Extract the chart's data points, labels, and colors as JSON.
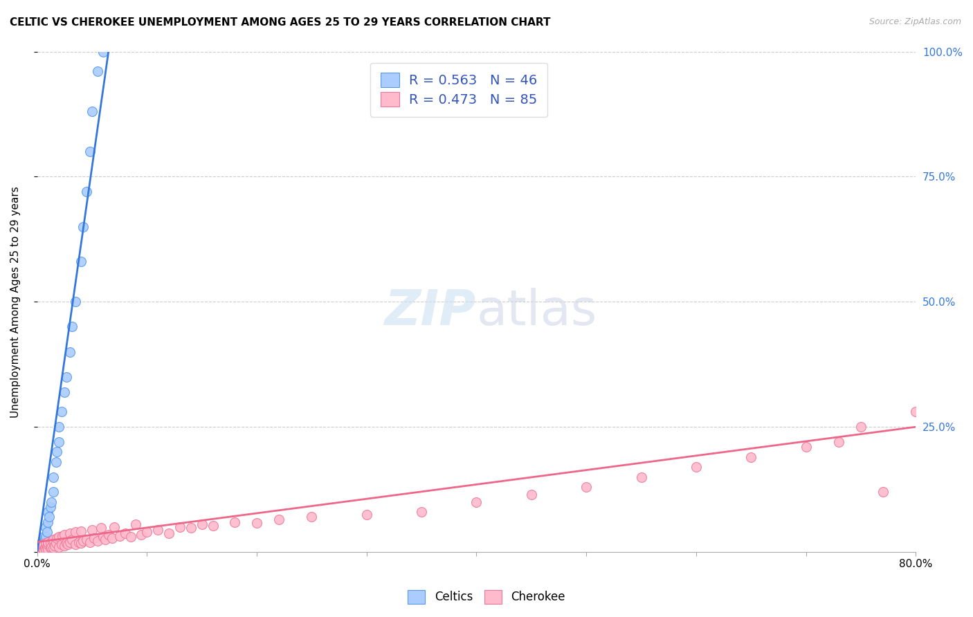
{
  "title": "CELTIC VS CHEROKEE UNEMPLOYMENT AMONG AGES 25 TO 29 YEARS CORRELATION CHART",
  "source": "Source: ZipAtlas.com",
  "ylabel": "Unemployment Among Ages 25 to 29 years",
  "xlim": [
    0.0,
    0.8
  ],
  "ylim": [
    0.0,
    1.0
  ],
  "xticks": [
    0.0,
    0.1,
    0.2,
    0.3,
    0.4,
    0.5,
    0.6,
    0.7,
    0.8
  ],
  "xticklabels": [
    "0.0%",
    "",
    "",
    "",
    "",
    "",
    "",
    "",
    "80.0%"
  ],
  "yticks": [
    0.0,
    0.25,
    0.5,
    0.75,
    1.0
  ],
  "right_yticklabels": [
    "",
    "25.0%",
    "50.0%",
    "75.0%",
    "100.0%"
  ],
  "celtics_color": "#aaccff",
  "cherokee_color": "#ffbbcc",
  "celtics_edge_color": "#5599ee",
  "cherokee_edge_color": "#ee7799",
  "celtics_line_color": "#3377dd",
  "cherokee_line_color": "#ee6688",
  "celtics_R": 0.563,
  "celtics_N": 46,
  "cherokee_R": 0.473,
  "cherokee_N": 85,
  "legend_R_color": "#3355bb",
  "celtics_x": [
    0.001,
    0.001,
    0.001,
    0.001,
    0.001,
    0.002,
    0.002,
    0.002,
    0.003,
    0.003,
    0.003,
    0.004,
    0.004,
    0.005,
    0.005,
    0.005,
    0.006,
    0.006,
    0.007,
    0.008,
    0.008,
    0.009,
    0.01,
    0.01,
    0.011,
    0.012,
    0.013,
    0.015,
    0.015,
    0.017,
    0.018,
    0.02,
    0.02,
    0.022,
    0.025,
    0.027,
    0.03,
    0.032,
    0.035,
    0.04,
    0.042,
    0.045,
    0.048,
    0.05,
    0.055,
    0.06
  ],
  "celtics_y": [
    0.0,
    0.0,
    0.002,
    0.005,
    0.008,
    0.003,
    0.006,
    0.01,
    0.004,
    0.012,
    0.015,
    0.008,
    0.018,
    0.01,
    0.02,
    0.025,
    0.015,
    0.03,
    0.025,
    0.03,
    0.05,
    0.04,
    0.06,
    0.08,
    0.07,
    0.09,
    0.1,
    0.12,
    0.15,
    0.18,
    0.2,
    0.22,
    0.25,
    0.28,
    0.32,
    0.35,
    0.4,
    0.45,
    0.5,
    0.58,
    0.65,
    0.72,
    0.8,
    0.88,
    0.96,
    1.0
  ],
  "cherokee_x": [
    0.001,
    0.001,
    0.002,
    0.002,
    0.003,
    0.003,
    0.004,
    0.004,
    0.005,
    0.005,
    0.006,
    0.006,
    0.007,
    0.008,
    0.008,
    0.009,
    0.01,
    0.01,
    0.01,
    0.012,
    0.012,
    0.013,
    0.014,
    0.015,
    0.015,
    0.016,
    0.017,
    0.018,
    0.02,
    0.02,
    0.022,
    0.023,
    0.025,
    0.025,
    0.027,
    0.028,
    0.03,
    0.03,
    0.032,
    0.035,
    0.035,
    0.038,
    0.04,
    0.04,
    0.042,
    0.045,
    0.048,
    0.05,
    0.052,
    0.055,
    0.058,
    0.06,
    0.062,
    0.065,
    0.068,
    0.07,
    0.075,
    0.08,
    0.085,
    0.09,
    0.095,
    0.1,
    0.11,
    0.12,
    0.13,
    0.14,
    0.15,
    0.16,
    0.18,
    0.2,
    0.22,
    0.25,
    0.3,
    0.35,
    0.4,
    0.45,
    0.5,
    0.55,
    0.6,
    0.65,
    0.7,
    0.73,
    0.75,
    0.77,
    0.8
  ],
  "cherokee_y": [
    0.0,
    0.003,
    0.0,
    0.005,
    0.002,
    0.008,
    0.003,
    0.01,
    0.005,
    0.012,
    0.004,
    0.015,
    0.008,
    0.005,
    0.018,
    0.01,
    0.006,
    0.015,
    0.02,
    0.008,
    0.018,
    0.01,
    0.022,
    0.008,
    0.025,
    0.012,
    0.018,
    0.028,
    0.01,
    0.03,
    0.015,
    0.032,
    0.012,
    0.035,
    0.018,
    0.015,
    0.02,
    0.038,
    0.025,
    0.015,
    0.04,
    0.02,
    0.018,
    0.042,
    0.022,
    0.025,
    0.02,
    0.045,
    0.028,
    0.022,
    0.048,
    0.03,
    0.025,
    0.035,
    0.028,
    0.05,
    0.032,
    0.038,
    0.03,
    0.055,
    0.035,
    0.04,
    0.045,
    0.038,
    0.05,
    0.048,
    0.055,
    0.052,
    0.06,
    0.058,
    0.065,
    0.07,
    0.075,
    0.08,
    0.1,
    0.115,
    0.13,
    0.15,
    0.17,
    0.19,
    0.21,
    0.22,
    0.25,
    0.12,
    0.28
  ]
}
